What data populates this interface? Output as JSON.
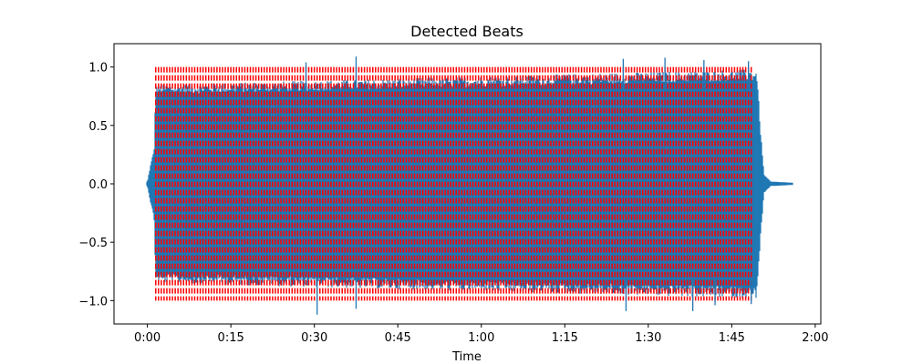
{
  "chart_data": {
    "type": "line",
    "title": "Detected Beats",
    "xlabel": "Time",
    "ylabel": "",
    "xlim": [
      -6,
      121
    ],
    "ylim": [
      -1.2,
      1.2
    ],
    "x_ticks": [
      {
        "value": 0,
        "label": "0:00"
      },
      {
        "value": 15,
        "label": "0:15"
      },
      {
        "value": 30,
        "label": "0:30"
      },
      {
        "value": 45,
        "label": "0:45"
      },
      {
        "value": 60,
        "label": "1:00"
      },
      {
        "value": 75,
        "label": "1:15"
      },
      {
        "value": 90,
        "label": "1:30"
      },
      {
        "value": 105,
        "label": "1:45"
      },
      {
        "value": 120,
        "label": "2:00"
      }
    ],
    "y_ticks": [
      {
        "value": 1.0,
        "label": "1.0"
      },
      {
        "value": 0.5,
        "label": "0.5"
      },
      {
        "value": 0.0,
        "label": "0.0"
      },
      {
        "value": -0.5,
        "label": "−0.5"
      },
      {
        "value": -1.0,
        "label": "−1.0"
      }
    ],
    "series": [
      {
        "kind": "waveform",
        "color": "#1f77b4",
        "start": 0.0,
        "end": 115.8,
        "envelope": [
          {
            "t": 0.0,
            "a": 0.02
          },
          {
            "t": 0.5,
            "a": 0.15
          },
          {
            "t": 1.2,
            "a": 0.3
          },
          {
            "t": 1.5,
            "a": 0.85
          },
          {
            "t": 108.0,
            "a": 0.98
          },
          {
            "t": 109.5,
            "a": 0.98
          },
          {
            "t": 110.2,
            "a": 0.45
          },
          {
            "t": 110.8,
            "a": 0.08
          },
          {
            "t": 112.0,
            "a": 0.02
          },
          {
            "t": 115.8,
            "a": 0.01
          }
        ],
        "peaks_above": [
          {
            "t": 28.5,
            "v": 1.04
          },
          {
            "t": 37.5,
            "v": 1.09
          },
          {
            "t": 85.5,
            "v": 1.07
          },
          {
            "t": 93.0,
            "v": 1.08
          },
          {
            "t": 100.0,
            "v": 1.06
          },
          {
            "t": 108.0,
            "v": 1.05
          }
        ],
        "peaks_below": [
          {
            "t": 30.5,
            "v": -1.12
          },
          {
            "t": 37.5,
            "v": -1.07
          },
          {
            "t": 86.0,
            "v": -1.09
          },
          {
            "t": 98.0,
            "v": -1.09
          },
          {
            "t": 102.0,
            "v": -1.04
          },
          {
            "t": 108.5,
            "v": -1.03
          }
        ]
      },
      {
        "kind": "beats",
        "color": "#ff0000",
        "style": "dashed",
        "ymin": -1.0,
        "ymax": 1.0,
        "first_beat": 1.5,
        "last_beat": 108.5,
        "interval": 0.5
      }
    ]
  }
}
